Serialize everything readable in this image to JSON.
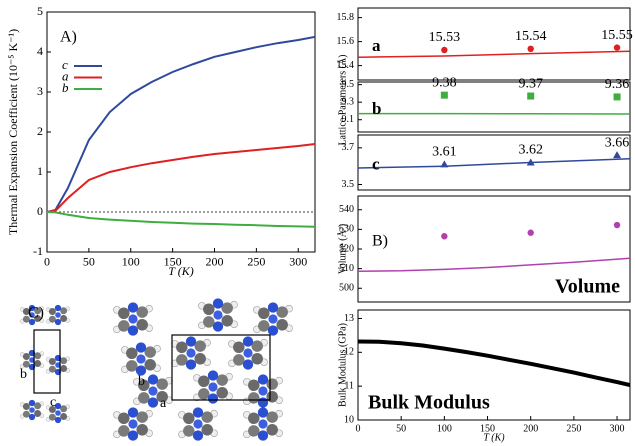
{
  "chart_data": [
    {
      "type": "line",
      "panel_label": "A)",
      "ylabel": "Thermal Expansion Coefficient (10⁻⁵ K⁻¹)",
      "xlabel": "T (K)",
      "xlim": [
        0,
        320
      ],
      "xticks": [
        0,
        50,
        100,
        150,
        200,
        250,
        300
      ],
      "ylim": [
        -1,
        5
      ],
      "yticks": [
        -1,
        0,
        1,
        2,
        3,
        4,
        5
      ],
      "zero_line": true,
      "legend": "upper left",
      "series": [
        {
          "name": "c",
          "color": "#2f4a9c",
          "x": [
            0,
            10,
            25,
            50,
            75,
            100,
            125,
            150,
            175,
            200,
            225,
            250,
            275,
            300,
            320
          ],
          "values": [
            0,
            0.05,
            0.6,
            1.8,
            2.5,
            2.95,
            3.25,
            3.5,
            3.7,
            3.88,
            4.0,
            4.12,
            4.22,
            4.3,
            4.38
          ]
        },
        {
          "name": "a",
          "color": "#e02020",
          "x": [
            0,
            10,
            25,
            50,
            75,
            100,
            125,
            150,
            175,
            200,
            225,
            250,
            275,
            300,
            320
          ],
          "values": [
            0,
            0.03,
            0.35,
            0.8,
            1.0,
            1.12,
            1.22,
            1.3,
            1.38,
            1.45,
            1.5,
            1.55,
            1.6,
            1.65,
            1.7
          ]
        },
        {
          "name": "b",
          "color": "#3fae3f",
          "x": [
            0,
            10,
            25,
            50,
            75,
            100,
            125,
            150,
            175,
            200,
            225,
            250,
            275,
            300,
            320
          ],
          "values": [
            0,
            -0.01,
            -0.07,
            -0.15,
            -0.19,
            -0.22,
            -0.25,
            -0.27,
            -0.29,
            -0.3,
            -0.32,
            -0.33,
            -0.35,
            -0.36,
            -0.37
          ]
        }
      ]
    },
    {
      "type": "line",
      "ylabel": "Lattice Parameters (Å)",
      "xlim": [
        0,
        315
      ],
      "ylim": [
        15.28,
        15.88
      ],
      "yticks": [
        15.4,
        15.6,
        15.8
      ],
      "series": [
        {
          "name": "a",
          "color": "#e02020",
          "x": [
            0,
            100,
            200,
            315
          ],
          "values": [
            15.47,
            15.48,
            15.5,
            15.52
          ]
        }
      ],
      "points": {
        "marker": "circle",
        "color": "#e02020",
        "x": [
          100,
          200,
          300
        ],
        "values": [
          15.53,
          15.54,
          15.55
        ]
      }
    },
    {
      "type": "line",
      "xlim": [
        0,
        315
      ],
      "ylim": [
        8.96,
        9.53
      ],
      "yticks": [
        9.1,
        9.3,
        9.5
      ],
      "series": [
        {
          "name": "b",
          "color": "#3fae3f",
          "x": [
            0,
            100,
            200,
            315
          ],
          "values": [
            9.17,
            9.17,
            9.168,
            9.165
          ]
        }
      ],
      "points": {
        "marker": "square",
        "color": "#3fae3f",
        "x": [
          100,
          200,
          300
        ],
        "values": [
          9.38,
          9.37,
          9.36
        ]
      }
    },
    {
      "type": "line",
      "xlim": [
        0,
        315
      ],
      "ylim": [
        3.47,
        3.77
      ],
      "yticks": [
        3.5,
        3.7
      ],
      "series": [
        {
          "name": "c",
          "color": "#2f4a9c",
          "x": [
            0,
            100,
            200,
            315
          ],
          "values": [
            3.59,
            3.6,
            3.62,
            3.64
          ]
        }
      ],
      "points": {
        "marker": "triangle",
        "color": "#2f4a9c",
        "x": [
          100,
          200,
          300
        ],
        "values": [
          3.61,
          3.62,
          3.66
        ]
      }
    },
    {
      "type": "line",
      "panel_label": "B)",
      "ylabel": "Volume (Å³)",
      "annotation": "Volume",
      "xlim": [
        0,
        315
      ],
      "ylim": [
        493,
        547
      ],
      "yticks": [
        500,
        510,
        520,
        530,
        540
      ],
      "series": [
        {
          "color": "#b040b0",
          "x": [
            0,
            50,
            100,
            150,
            200,
            250,
            315
          ],
          "values": [
            508.7,
            508.9,
            509.6,
            510.6,
            511.9,
            513.3,
            515.3
          ]
        }
      ],
      "points": {
        "marker": "circle",
        "color": "#b040b0",
        "x": [
          100,
          200,
          300
        ],
        "values": [
          526.5,
          528.3,
          532.2
        ]
      }
    },
    {
      "type": "line",
      "ylabel": "Bulk Modulus (GPa)",
      "xlabel": "T (K)",
      "annotation": "Bulk Modulus",
      "xlim": [
        0,
        315
      ],
      "xticks": [
        0,
        50,
        100,
        150,
        200,
        250,
        300
      ],
      "ylim": [
        10,
        13.25
      ],
      "yticks": [
        10,
        11,
        12,
        13
      ],
      "series": [
        {
          "color": "#000000",
          "x": [
            0,
            25,
            50,
            75,
            100,
            125,
            150,
            175,
            200,
            225,
            250,
            275,
            300,
            315
          ],
          "values": [
            12.32,
            12.31,
            12.27,
            12.2,
            12.11,
            12.01,
            11.9,
            11.78,
            11.66,
            11.53,
            11.4,
            11.26,
            11.12,
            11.03
          ]
        }
      ]
    }
  ],
  "structure_panel": {
    "label": "C)",
    "axis_labels": [
      "b",
      "c",
      "b",
      "a"
    ]
  }
}
